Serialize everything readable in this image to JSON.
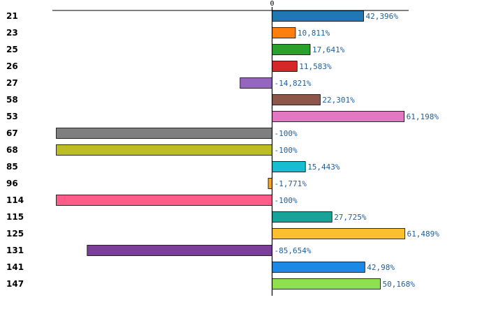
{
  "chart_data": {
    "type": "bar",
    "orientation": "horizontal",
    "zero_label": "0",
    "xlim": [
      -100,
      62
    ],
    "categories": [
      "21",
      "23",
      "25",
      "26",
      "27",
      "58",
      "53",
      "67",
      "68",
      "85",
      "96",
      "114",
      "115",
      "125",
      "131",
      "141",
      "147"
    ],
    "values": [
      42.396,
      10.811,
      17.641,
      11.583,
      -14.821,
      22.301,
      61.198,
      -100,
      -100,
      15.443,
      -1.771,
      -100,
      27.725,
      61.489,
      -85.654,
      42.98,
      50.168
    ],
    "value_labels": [
      "42,396%",
      "10,811%",
      "17,641%",
      "11,583%",
      "-14,821%",
      "22,301%",
      "61,198%",
      "-100%",
      "-100%",
      "15,443%",
      "-1,771%",
      "-100%",
      "27,725%",
      "61,489%",
      "-85,654%",
      "42,98%",
      "50,168%"
    ],
    "colors": [
      "#1f77b4",
      "#ff7f0e",
      "#2ca02c",
      "#d62728",
      "#9467bd",
      "#8c564b",
      "#e377c2",
      "#7f7f7f",
      "#bcbd22",
      "#17becf",
      "#f5a623",
      "#ff5c8a",
      "#17a398",
      "#fbc02d",
      "#7b3f98",
      "#1e88e5",
      "#8ee04e"
    ],
    "highlight_category": "26",
    "highlight_color": "#cc0000"
  }
}
